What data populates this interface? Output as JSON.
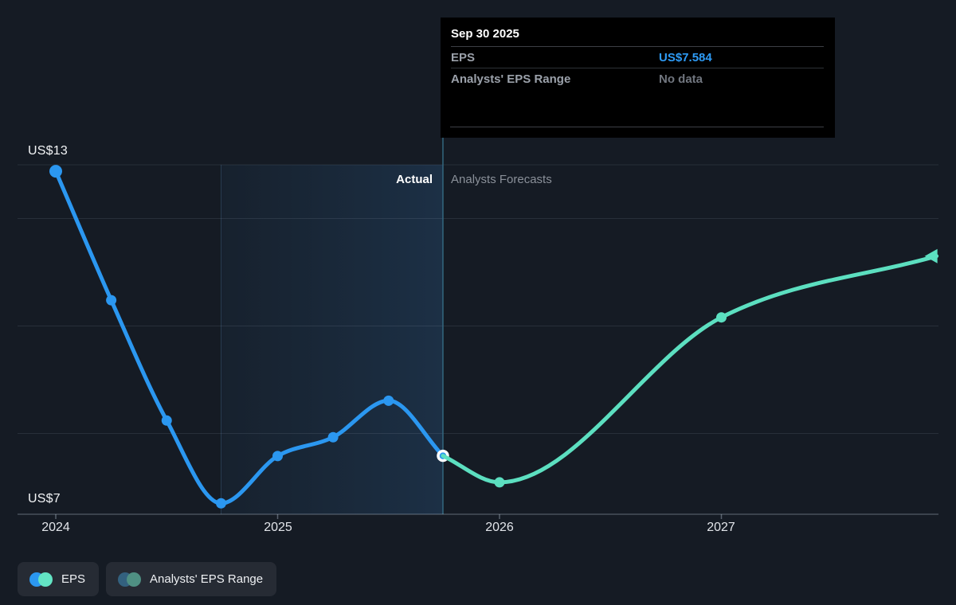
{
  "tooltip": {
    "date": "Sep 30 2025",
    "rows": [
      {
        "label": "EPS",
        "value": "US$7.584",
        "value_color": "#2E9BF5"
      },
      {
        "label": "Analysts' EPS Range",
        "value": "No data",
        "value_color": "#71767F"
      }
    ]
  },
  "axis": {
    "y_top_label": "US$13",
    "y_bottom_label": "US$7",
    "x_labels": [
      "2024",
      "2025",
      "2026",
      "2027"
    ]
  },
  "sections": {
    "actual_label": "Actual",
    "forecast_label": "Analysts Forecasts"
  },
  "legend": [
    {
      "label": "EPS",
      "colors": [
        "#2B97F0",
        "#63E4C4"
      ]
    },
    {
      "label": "Analysts' EPS Range",
      "colors": [
        "#33617F",
        "#4F9083"
      ]
    }
  ],
  "chart_data": {
    "type": "line",
    "title": "EPS: past results and analysts forecasts",
    "x_axis": {
      "ticks": [
        2024,
        2025,
        2026,
        2027
      ],
      "tick_labels": [
        "2024",
        "2025",
        "2026",
        "2027"
      ]
    },
    "y_axis": {
      "top_label": "US$13",
      "bottom_label": "US$7",
      "top_value": 13,
      "bottom_value": 7,
      "gridline_values": [
        13,
        12,
        10,
        8
      ]
    },
    "ylim": [
      6.5,
      13.5
    ],
    "xlim": [
      2023.83,
      2027.98
    ],
    "grid": true,
    "legend_position": "bottom-left",
    "divider_x": 2025.745,
    "divider_labels": {
      "left": "Actual",
      "right": "Analysts Forecasts"
    },
    "highlight_band_x": [
      2024.745,
      2025.745
    ],
    "series": [
      {
        "name": "EPS",
        "kind": "actual",
        "color": "#2B97F0",
        "x": [
          2024.0,
          2024.25,
          2024.5,
          2024.745,
          2025.0,
          2025.25,
          2025.5,
          2025.745
        ],
        "y": [
          12.88,
          10.48,
          8.24,
          6.7,
          7.58,
          7.93,
          8.61,
          7.584
        ],
        "dot_indices": [
          0,
          1,
          2,
          3,
          4,
          5,
          6
        ],
        "ring_dot_index": 7
      },
      {
        "name": "Analysts EPS Forecast",
        "kind": "forecast",
        "color": "#5CDFC0",
        "x": [
          2025.745,
          2026.0,
          2027.0,
          2027.97
        ],
        "y": [
          7.584,
          7.09,
          10.16,
          11.3
        ],
        "dot_indices": [
          1,
          2
        ],
        "end_arrow": true
      }
    ],
    "annotations": [
      {
        "x": 2025.745,
        "y": 7.584,
        "text": "Sep 30 2025 — EPS US$7.584"
      }
    ]
  }
}
